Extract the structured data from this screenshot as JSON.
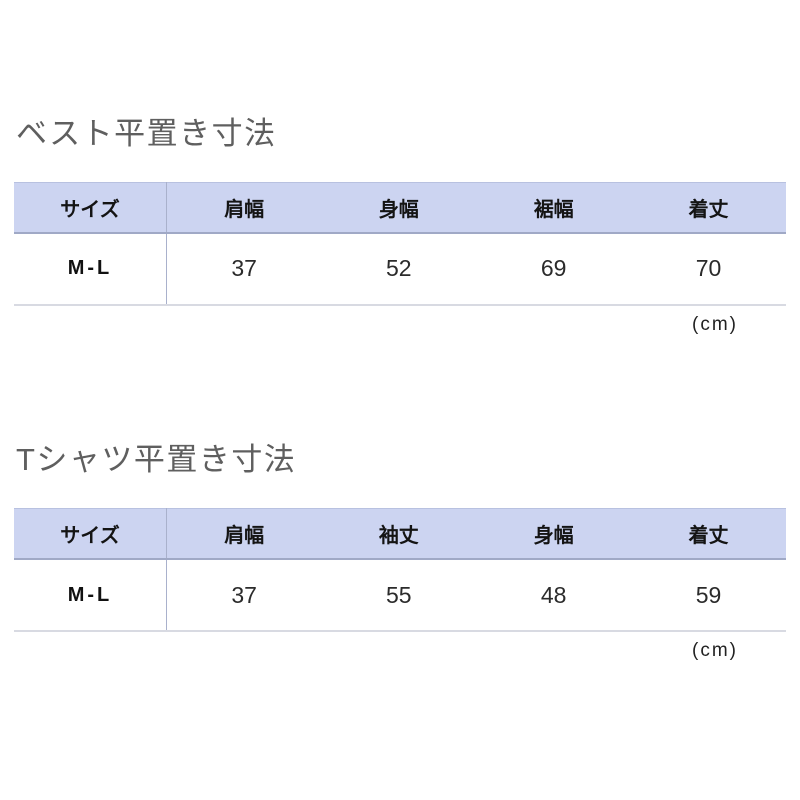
{
  "page": {
    "background": "#ffffff"
  },
  "colors": {
    "header_background": "#ccd4f1",
    "header_bottom_border": "#a0a9c6",
    "column_divider": "#a9b1cc",
    "row_bottom_border": "#d8dae2",
    "table_top_border": "#b8c1e0",
    "title_text": "#5f5f5f",
    "header_text": "#141414",
    "cell_text": "#2b2b2b"
  },
  "sections": [
    {
      "title": "ベスト平置き寸法",
      "columns": [
        "サイズ",
        "肩幅",
        "身幅",
        "裾幅",
        "着丈"
      ],
      "rows": [
        [
          "M-L",
          "37",
          "52",
          "69",
          "70"
        ]
      ],
      "unit_label": "(cm)"
    },
    {
      "title": "Tシャツ平置き寸法",
      "columns": [
        "サイズ",
        "肩幅",
        "袖丈",
        "身幅",
        "着丈"
      ],
      "rows": [
        [
          "M-L",
          "37",
          "55",
          "48",
          "59"
        ]
      ],
      "unit_label": "(cm)"
    }
  ]
}
